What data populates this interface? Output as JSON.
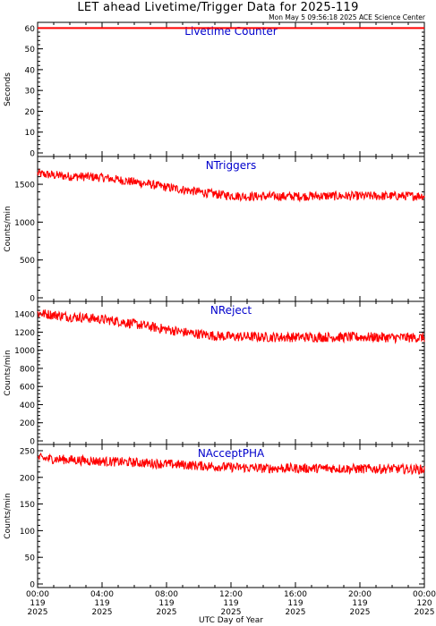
{
  "header": {
    "title": "LET ahead Livetime/Trigger Data for 2025-119",
    "timestamp": "Mon May  5 09:56:18 2025 ACE Science Center"
  },
  "colors": {
    "data": "#ff0000",
    "panel_label": "#0000cc",
    "axis": "#000000"
  },
  "x_axis": {
    "label": "UTC Day of Year",
    "ticks": [
      {
        "time": "00:00",
        "doy": "119",
        "year": "2025",
        "hour": 0
      },
      {
        "time": "04:00",
        "doy": "119",
        "year": "2025",
        "hour": 4
      },
      {
        "time": "08:00",
        "doy": "119",
        "year": "2025",
        "hour": 8
      },
      {
        "time": "12:00",
        "doy": "119",
        "year": "2025",
        "hour": 12
      },
      {
        "time": "16:00",
        "doy": "119",
        "year": "2025",
        "hour": 16
      },
      {
        "time": "20:00",
        "doy": "119",
        "year": "2025",
        "hour": 20
      },
      {
        "time": "00:00",
        "doy": "120",
        "year": "2025",
        "hour": 24
      }
    ]
  },
  "chart_data": [
    {
      "type": "line",
      "title": "Livetime Counter",
      "ylabel": "Seconds",
      "ylim": [
        0,
        61
      ],
      "yticks": [
        0,
        10,
        20,
        30,
        40,
        50,
        60
      ],
      "x_unit": "hours UTC, day 119",
      "x": [
        0,
        2,
        4,
        6,
        8,
        10,
        12,
        14,
        16,
        18,
        20,
        22,
        24
      ],
      "series": [
        {
          "values": [
            60,
            60,
            60,
            60,
            60,
            60,
            60,
            60,
            60,
            60,
            60,
            60,
            60
          ]
        }
      ]
    },
    {
      "type": "line",
      "title": "NTriggers",
      "ylabel": "Counts/min",
      "ylim": [
        0,
        1820
      ],
      "yticks": [
        0,
        500,
        1000,
        1500
      ],
      "x_unit": "hours UTC, day 119",
      "x": [
        0,
        1,
        2,
        3,
        4,
        5,
        6,
        7,
        8,
        9,
        10,
        11,
        12,
        13,
        14,
        15,
        16,
        17,
        18,
        19,
        20,
        21,
        22,
        23,
        24
      ],
      "series": [
        {
          "values": [
            1640,
            1620,
            1605,
            1600,
            1590,
            1560,
            1530,
            1500,
            1460,
            1430,
            1400,
            1370,
            1350,
            1340,
            1340,
            1340,
            1340,
            1345,
            1345,
            1345,
            1345,
            1345,
            1345,
            1345,
            1350
          ]
        }
      ],
      "noise_amplitude": 60
    },
    {
      "type": "line",
      "title": "NReject",
      "ylabel": "Counts/min",
      "ylim": [
        0,
        1500
      ],
      "yticks": [
        0,
        200,
        400,
        600,
        800,
        1000,
        1200,
        1400
      ],
      "x_unit": "hours UTC, day 119",
      "x": [
        0,
        1,
        2,
        3,
        4,
        5,
        6,
        7,
        8,
        9,
        10,
        11,
        12,
        13,
        14,
        15,
        16,
        17,
        18,
        19,
        20,
        21,
        22,
        23,
        24
      ],
      "series": [
        {
          "values": [
            1410,
            1390,
            1370,
            1360,
            1340,
            1320,
            1290,
            1260,
            1230,
            1200,
            1180,
            1160,
            1150,
            1150,
            1145,
            1145,
            1145,
            1145,
            1145,
            1145,
            1145,
            1145,
            1140,
            1140,
            1140
          ]
        }
      ],
      "noise_amplitude": 55
    },
    {
      "type": "line",
      "title": "NAcceptPHA",
      "ylabel": "Counts/min",
      "ylim": [
        0,
        255
      ],
      "yticks": [
        0,
        50,
        100,
        150,
        200,
        250
      ],
      "x_unit": "hours UTC, day 119",
      "x": [
        0,
        2,
        4,
        6,
        8,
        10,
        12,
        14,
        16,
        18,
        20,
        22,
        24
      ],
      "series": [
        {
          "values": [
            236,
            233,
            230,
            228,
            225,
            222,
            219,
            217,
            217,
            217,
            216,
            216,
            215
          ]
        }
      ],
      "noise_amplitude": 9
    }
  ]
}
